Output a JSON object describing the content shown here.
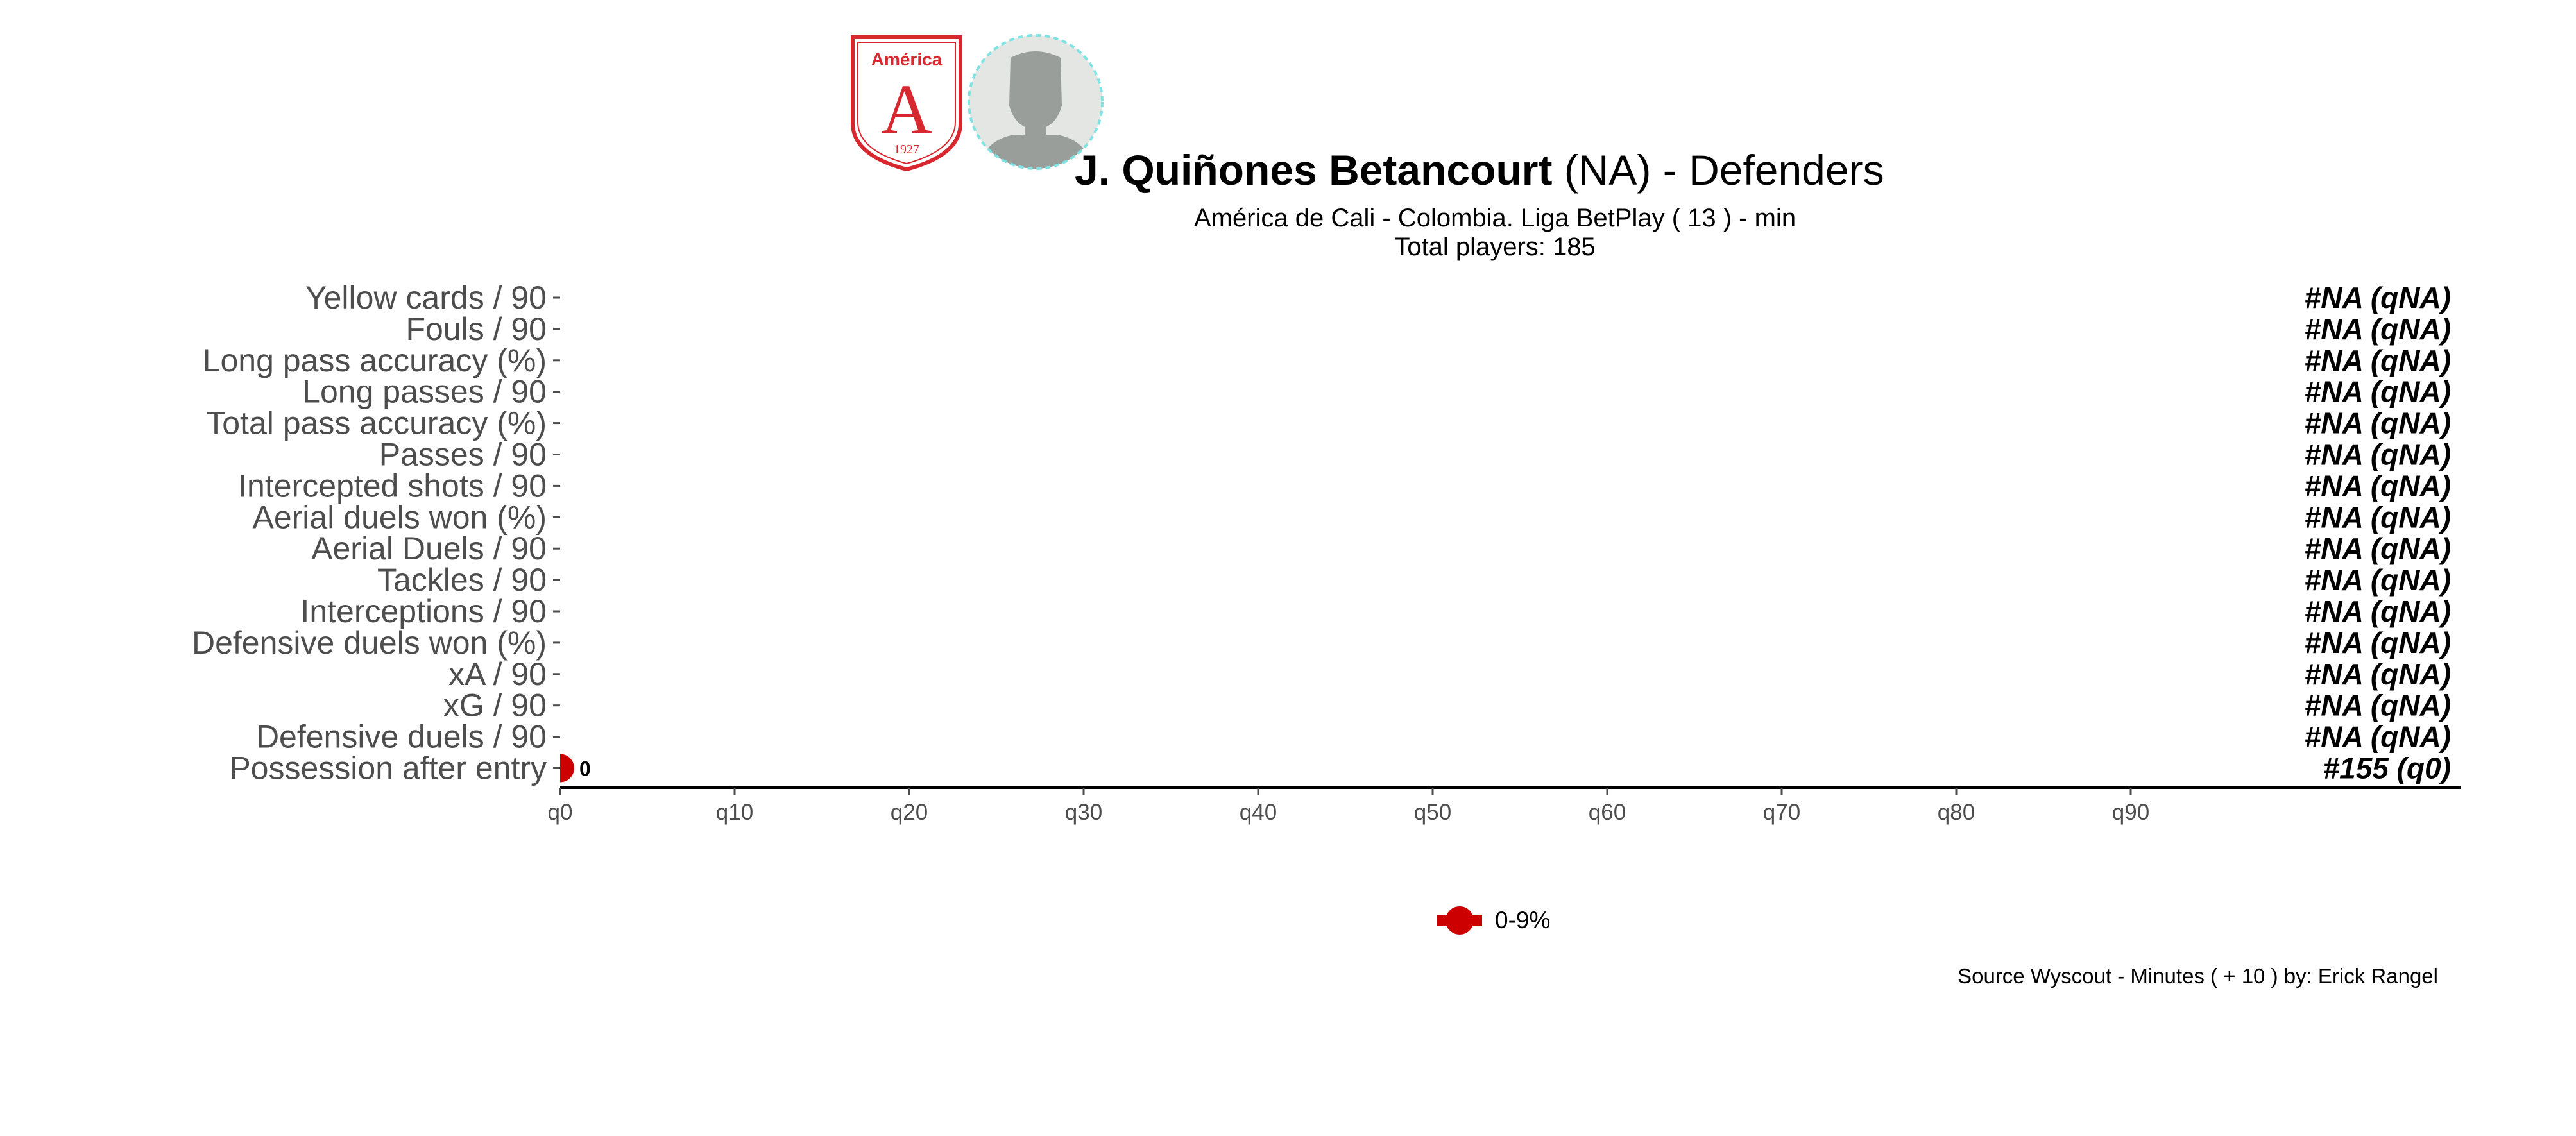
{
  "header": {
    "player_name": "J. Quiñones Betancourt",
    "title_rest": " (NA) -  Defenders",
    "subtitle": "América de Cali  -  Colombia. Liga BetPlay  ( 13 ) - min",
    "total_players": "Total players:  185",
    "crest_name": "América",
    "crest_letter": "A",
    "crest_year": "1927"
  },
  "colors": {
    "accent": "#cc0000",
    "crest_red": "#d7282f",
    "avatar_bg": "#e3e6e3",
    "avatar_border": "#7fe3e3",
    "avatar_figure": "#9a9e9a",
    "axis": "#000000",
    "tick_text": "#4d4d4d"
  },
  "chart_data": {
    "type": "scatter",
    "orientation": "horizontal",
    "categories": [
      "Yellow cards / 90",
      "Fouls / 90",
      "Long pass accuracy (%)",
      "Long passes / 90",
      "Total pass accuracy (%)",
      "Passes / 90",
      "Intercepted shots / 90",
      "Aerial duels won (%)",
      "Aerial Duels / 90",
      "Tackles / 90",
      "Interceptions / 90",
      "Defensive duels won (%)",
      "xA / 90",
      "xG / 90",
      "Defensive duels / 90",
      "Possession after entry"
    ],
    "values": [
      null,
      null,
      null,
      null,
      null,
      null,
      null,
      null,
      null,
      null,
      null,
      null,
      null,
      null,
      null,
      0
    ],
    "point_labels": [
      "",
      "",
      "",
      "",
      "",
      "",
      "",
      "",
      "",
      "",
      "",
      "",
      "",
      "",
      "",
      "0"
    ],
    "rank_labels": [
      "#NA (qNA)",
      "#NA (qNA)",
      "#NA (qNA)",
      "#NA (qNA)",
      "#NA (qNA)",
      "#NA (qNA)",
      "#NA (qNA)",
      "#NA (qNA)",
      "#NA (qNA)",
      "#NA (qNA)",
      "#NA (qNA)",
      "#NA (qNA)",
      "#NA (qNA)",
      "#NA (qNA)",
      "#NA (qNA)",
      "#155 (q0)"
    ],
    "x_ticks": [
      0,
      10,
      20,
      30,
      40,
      50,
      60,
      70,
      80,
      90
    ],
    "x_tick_labels": [
      "q0",
      "q10",
      "q20",
      "q30",
      "q40",
      "q50",
      "q60",
      "q70",
      "q80",
      "q90"
    ],
    "xlim": [
      0,
      109
    ],
    "grid": false,
    "legend": {
      "position": "bottom",
      "entries": [
        {
          "label": "0-9%",
          "color": "#cc0000"
        }
      ]
    }
  },
  "caption": "Source Wyscout - Minutes ( + 10 ) by: Erick Rangel"
}
